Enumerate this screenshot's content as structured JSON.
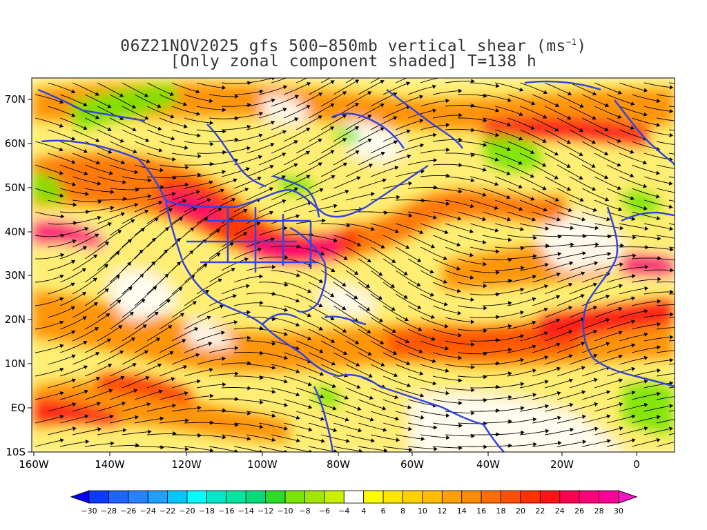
{
  "title": {
    "line1_prefix": "06Z21NOV2025 gfs 500−850mb vertical shear (ms",
    "line1_sup": "−1",
    "line1_suffix": ")",
    "line2": "[Only zonal component shaded] T=138 h"
  },
  "map": {
    "lat_labels": [
      "70N",
      "60N",
      "50N",
      "40N",
      "30N",
      "20N",
      "10N",
      "EQ",
      "10S"
    ],
    "lon_labels": [
      "160W",
      "140W",
      "120W",
      "100W",
      "80W",
      "60W",
      "40W",
      "20W",
      "0"
    ],
    "colors": {
      "coastline": "#3344dd",
      "streamline": "#000000",
      "frame": "#000000"
    }
  },
  "colorbar": {
    "labels": [
      "-30",
      "-28",
      "-26",
      "-24",
      "-22",
      "-20",
      "-18",
      "-16",
      "-14",
      "-12",
      "-10",
      "-8",
      "-6",
      "-4",
      "4",
      "6",
      "8",
      "10",
      "12",
      "14",
      "16",
      "18",
      "20",
      "22",
      "24",
      "26",
      "28",
      "30"
    ],
    "colors": [
      "#0000ff",
      "#0a3cff",
      "#1e64ff",
      "#2882ff",
      "#1ea0ff",
      "#00c8ff",
      "#00ffff",
      "#00e6c8",
      "#00e6a0",
      "#00dc78",
      "#28dc28",
      "#78e600",
      "#a0e600",
      "#c8f000",
      "#ffffff",
      "#ffff00",
      "#ffe600",
      "#ffd200",
      "#ffbe00",
      "#ffa000",
      "#ff8c00",
      "#ff6e00",
      "#ff5000",
      "#ff3200",
      "#ff1414",
      "#ff0050",
      "#ff0078",
      "#ff0096",
      "#ff14c8"
    ]
  }
}
